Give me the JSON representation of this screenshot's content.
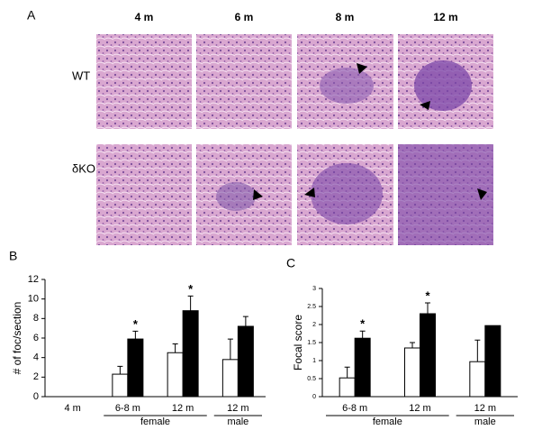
{
  "panel_a": {
    "label": "A",
    "columns": [
      "4 m",
      "6 m",
      "8 m",
      "12 m"
    ],
    "rows": [
      "WT",
      "δKO"
    ]
  },
  "chart_data": [
    {
      "type": "bar",
      "panel": "B",
      "y_label": "# of foc/section",
      "categories": [
        "4 m",
        "6-8 m",
        "12 m",
        "12 m"
      ],
      "groups": [
        "female",
        "male"
      ],
      "series": [
        {
          "color": "#ffffff",
          "values": [
            0,
            2.3,
            4.5,
            3.8
          ],
          "errors": [
            0,
            0.8,
            0.9,
            2.1
          ]
        },
        {
          "color": "#000000",
          "values": [
            0,
            5.9,
            8.8,
            7.2
          ],
          "errors": [
            0,
            0.8,
            1.5,
            1.0
          ]
        }
      ],
      "annotations": [
        {
          "text": "*",
          "category": 1,
          "series": 1
        },
        {
          "text": "*",
          "category": 2,
          "series": 1
        }
      ],
      "ylim": [
        0,
        12
      ],
      "yticks": [
        0,
        2,
        4,
        6,
        8,
        10,
        12
      ]
    },
    {
      "type": "bar",
      "panel": "C",
      "y_label": "Focal score",
      "categories": [
        "6-8 m",
        "12 m",
        "12 m"
      ],
      "groups": [
        "female",
        "male"
      ],
      "series": [
        {
          "color": "#ffffff",
          "values": [
            0.52,
            1.35,
            0.97
          ],
          "errors": [
            0.3,
            0.15,
            0.6
          ]
        },
        {
          "color": "#000000",
          "values": [
            1.62,
            2.3,
            1.97
          ],
          "errors": [
            0.2,
            0.3,
            null
          ]
        }
      ],
      "annotations": [
        {
          "text": "*",
          "category": 0,
          "series": 1
        },
        {
          "text": "*",
          "category": 1,
          "series": 1
        }
      ],
      "ylim": [
        0,
        3
      ],
      "yticks": [
        0,
        0.5,
        1,
        1.5,
        2,
        2.5,
        3
      ]
    }
  ]
}
